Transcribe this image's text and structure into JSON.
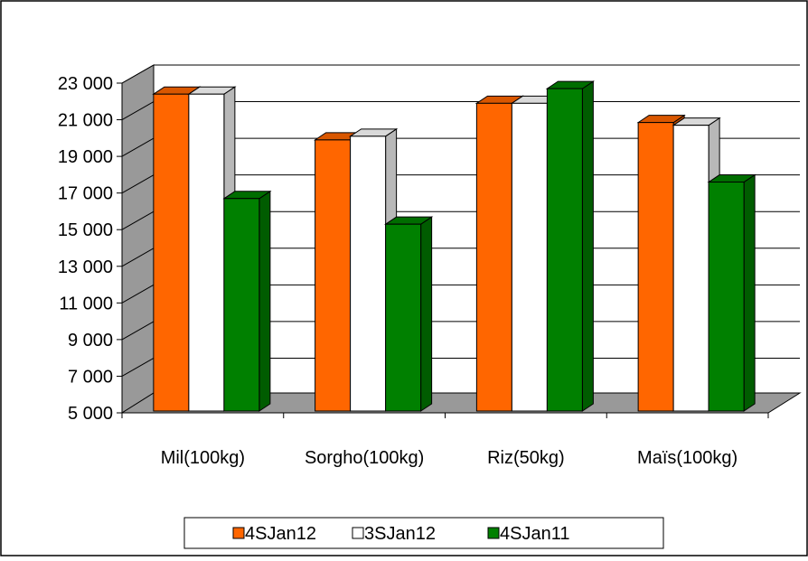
{
  "chart_data": {
    "type": "bar",
    "title": "",
    "xlabel": "",
    "ylabel": "",
    "categories": [
      "Mil(100kg)",
      "Sorgho(100kg)",
      "Riz(50kg)",
      "Maïs(100kg)"
    ],
    "series": [
      {
        "name": "4SJan12",
        "color": "#FF6600",
        "values": [
          22300,
          19800,
          21800,
          20750
        ]
      },
      {
        "name": "3SJan12",
        "color": "#FFFFFF",
        "values": [
          22300,
          20000,
          21800,
          20600
        ]
      },
      {
        "name": "4SJan11",
        "color": "#008000",
        "values": [
          16600,
          15200,
          22600,
          17500
        ]
      }
    ],
    "ylim": [
      5000,
      23000
    ],
    "yticks": [
      5000,
      7000,
      9000,
      11000,
      13000,
      15000,
      17000,
      19000,
      21000,
      23000
    ],
    "ytick_labels": [
      "5 000",
      "7 000",
      "9 000",
      "11 000",
      "13 000",
      "15 000",
      "17 000",
      "19 000",
      "21 000",
      "23 000"
    ],
    "grid": true,
    "three_d": true,
    "legend_position": "bottom"
  }
}
